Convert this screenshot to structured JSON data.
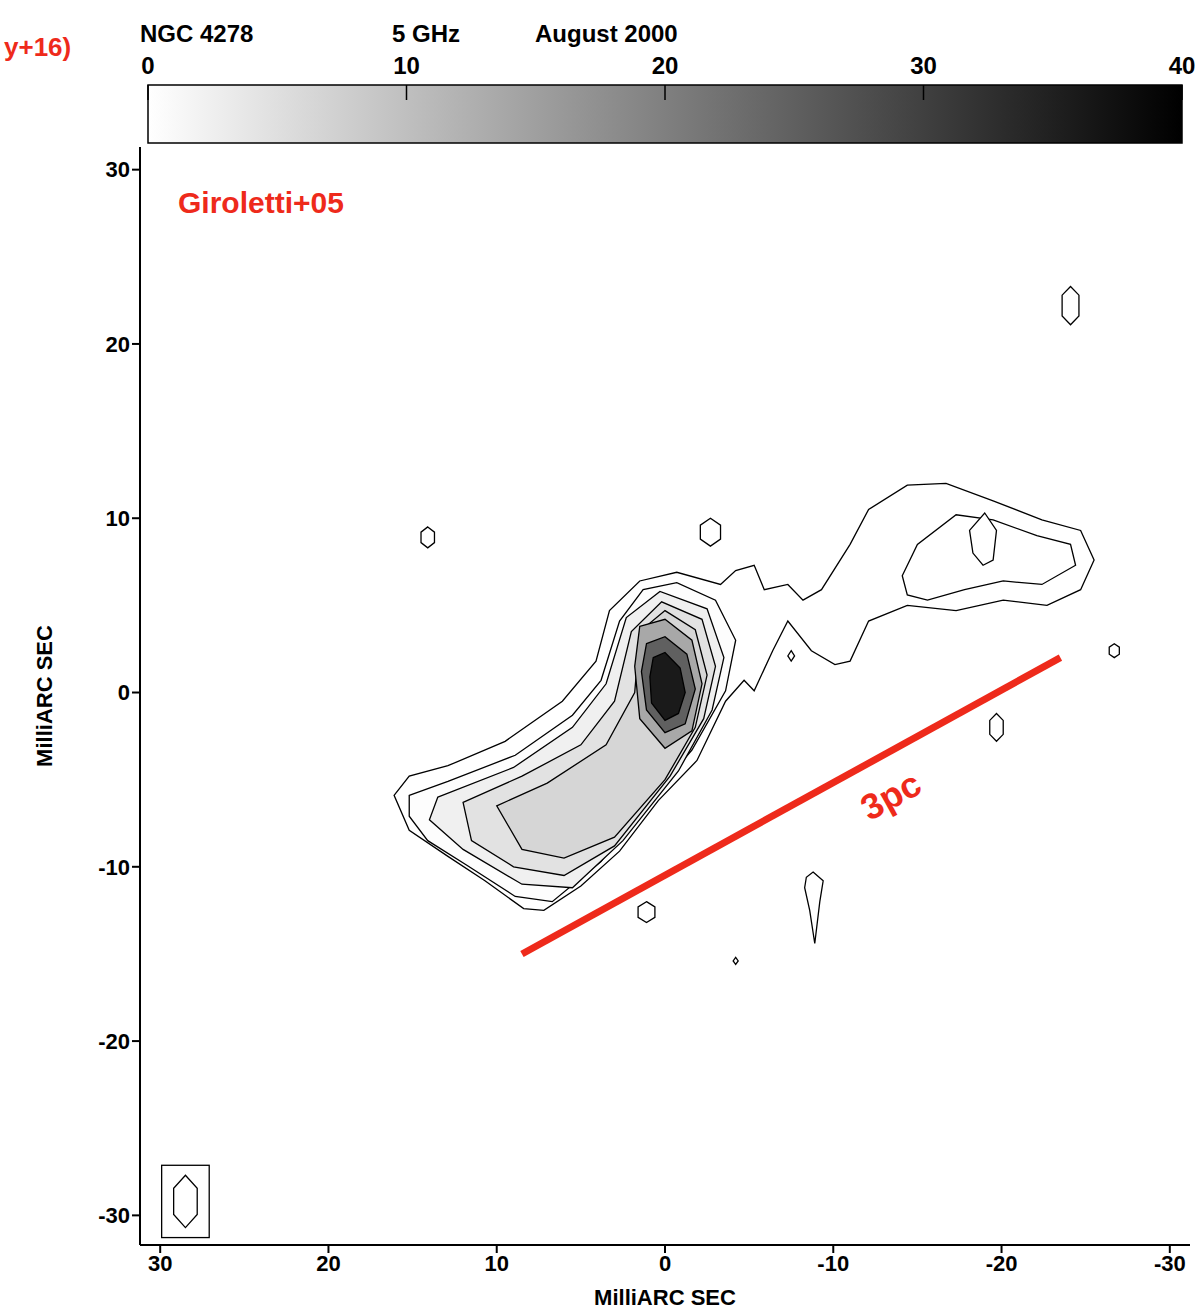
{
  "chart_data": {
    "type": "contour",
    "title": "NGC 4278",
    "subtitle": "5 GHz",
    "annotations": [
      "August 2000",
      "Giroletti+05",
      "y+16)"
    ],
    "x_label": "MilliARC SEC",
    "y_label": "MilliARC SEC",
    "xlim": [
      31.2,
      -31.2
    ],
    "xticks": [
      30,
      20,
      10,
      0,
      -10,
      -20,
      -30
    ],
    "ylim": [
      -31.7,
      31.3
    ],
    "yticks": [
      -30,
      -20,
      -10,
      0,
      10,
      20,
      30
    ],
    "colorbar": {
      "range": [
        0,
        40
      ],
      "ticks": [
        0,
        10,
        20,
        30,
        40
      ]
    },
    "scale_bar": {
      "label": "3pc",
      "color": "#ee2a1b",
      "x": [
        8.5,
        -23.5
      ],
      "y": [
        -15.0,
        2.0
      ]
    },
    "beam": {
      "x": [
        28.5,
        27.8,
        27.8,
        28.5,
        29.2,
        29.2
      ],
      "y": [
        -27.7,
        -28.45,
        -29.95,
        -30.7,
        -29.95,
        -28.45
      ]
    },
    "contours": [
      {
        "color": "#ffffff",
        "x": [
          16.1,
          15.2,
          12.9,
          9.5,
          6.1,
          4.1,
          3.3,
          1.5,
          -0.7,
          -3.3,
          -4.2,
          -5.3,
          -5.9,
          -7.3,
          -8.2,
          -9.3,
          -11.0,
          -12.1,
          -14.4,
          -16.7,
          -19.5,
          -22.4,
          -24.7,
          -25.5,
          -24.7,
          -22.7,
          -20.1,
          -17.3,
          -14.4,
          -12.1,
          -11.0,
          -10.1,
          -8.7,
          -7.3,
          -6.4,
          -5.3,
          -4.7,
          -3.6,
          -1.9,
          0.4,
          2.7,
          5.0,
          7.2,
          8.4,
          10.7,
          12.9,
          15.2
        ],
        "y": [
          -5.9,
          -4.8,
          -4.2,
          -2.8,
          -0.5,
          1.8,
          4.7,
          6.4,
          6.9,
          6.2,
          7.0,
          7.3,
          5.9,
          6.2,
          5.3,
          5.9,
          8.5,
          10.5,
          11.9,
          12.0,
          11.0,
          9.9,
          9.3,
          7.6,
          5.9,
          5.0,
          5.3,
          4.7,
          5.0,
          4.1,
          1.8,
          1.6,
          2.4,
          4.1,
          2.4,
          0.1,
          0.7,
          -0.5,
          -3.9,
          -6.2,
          -9.1,
          -11.1,
          -12.5,
          -12.4,
          -10.8,
          -9.4,
          -7.9
        ]
      },
      {
        "color": "#fdfdfd",
        "x": [
          15.2,
          12.9,
          8.9,
          5.5,
          3.8,
          2.7,
          1.3,
          -0.7,
          -3.0,
          -4.2,
          -3.6,
          -1.6,
          1.0,
          3.8,
          6.7,
          8.9,
          11.8,
          14.1,
          15.2
        ],
        "y": [
          -5.9,
          -5.1,
          -3.6,
          -1.3,
          0.7,
          4.1,
          5.9,
          6.3,
          5.3,
          3.0,
          0.1,
          -3.3,
          -6.2,
          -9.7,
          -12.0,
          -11.7,
          -9.9,
          -8.5,
          -7.1
        ]
      },
      {
        "color": "#f0f0f0",
        "x": [
          13.5,
          9.0,
          5.5,
          3.5,
          2.3,
          0.3,
          -2.5,
          -3.5,
          -2.8,
          -0.8,
          2.5,
          5.5,
          8.5,
          12.0,
          14.0
        ],
        "y": [
          -6.0,
          -4.3,
          -2.0,
          0.5,
          4.3,
          5.8,
          4.8,
          2.0,
          -1.0,
          -4.5,
          -8.5,
          -11.2,
          -11.0,
          -9.0,
          -7.3
        ]
      },
      {
        "color": "#e2e2e2",
        "x": [
          12.0,
          8.5,
          5.0,
          3.0,
          2.0,
          0.2,
          -2.2,
          -3.0,
          -2.3,
          -0.3,
          3.0,
          6.0,
          9.0,
          11.5
        ],
        "y": [
          -6.3,
          -4.8,
          -3.0,
          -0.5,
          3.5,
          5.2,
          4.2,
          1.5,
          -1.5,
          -4.8,
          -8.8,
          -10.5,
          -10.0,
          -8.5
        ]
      },
      {
        "color": "#d6d6d6",
        "x": [
          10.0,
          7.0,
          3.5,
          1.8,
          1.5,
          0.0,
          -1.8,
          -2.5,
          -1.8,
          0.0,
          3.0,
          6.0,
          8.5
        ],
        "y": [
          -6.5,
          -5.2,
          -3.0,
          0.0,
          3.5,
          4.7,
          3.6,
          1.0,
          -2.0,
          -5.0,
          -8.3,
          -9.5,
          -9.0
        ]
      },
      {
        "color": "#a8a8a8",
        "x": [
          1.5,
          0.0,
          -1.6,
          -2.2,
          -1.6,
          0.0,
          1.5,
          1.8
        ],
        "y": [
          3.8,
          4.2,
          3.0,
          0.5,
          -2.2,
          -3.2,
          -1.5,
          1.5
        ]
      },
      {
        "color": "#606060",
        "x": [
          1.1,
          0.0,
          -1.3,
          -1.8,
          -1.2,
          0.0,
          1.1,
          1.4
        ],
        "y": [
          2.8,
          3.2,
          2.2,
          0.2,
          -1.8,
          -2.3,
          -1.0,
          1.2
        ]
      },
      {
        "color": "#1a1a1a",
        "x": [
          0.7,
          0.0,
          -0.9,
          -1.2,
          -0.8,
          0.0,
          0.8,
          0.9
        ],
        "y": [
          2.0,
          2.3,
          1.4,
          0.0,
          -1.2,
          -1.6,
          -0.6,
          0.9
        ]
      },
      {
        "color": "#ffffff",
        "x": [
          -14.1,
          -15.0,
          -17.3,
          -19.5,
          -22.1,
          -24.1,
          -24.4,
          -22.4,
          -20.1,
          -17.8,
          -15.6,
          -14.4
        ],
        "y": [
          6.7,
          8.5,
          10.2,
          9.9,
          9.0,
          8.5,
          7.3,
          6.2,
          6.4,
          5.9,
          5.3,
          5.6
        ]
      },
      {
        "color": "#ffffff",
        "x": [
          -18.1,
          -19.0,
          -19.7,
          -19.5,
          -18.9,
          -18.3
        ],
        "y": [
          9.3,
          10.3,
          9.3,
          7.6,
          7.3,
          8.0
        ]
      },
      {
        "color": "#ffffff",
        "x": [
          14.1,
          13.7,
          13.7,
          14.1,
          14.5,
          14.5
        ],
        "y": [
          9.5,
          9.2,
          8.6,
          8.3,
          8.6,
          9.2
        ]
      },
      {
        "color": "#ffffff",
        "x": [
          -2.7,
          -3.3,
          -3.3,
          -2.7,
          -2.1,
          -2.1
        ],
        "y": [
          10.0,
          9.6,
          8.8,
          8.4,
          8.8,
          9.6
        ]
      },
      {
        "color": "#ffffff",
        "x": [
          -24.1,
          -24.6,
          -24.6,
          -24.1,
          -23.6,
          -23.6
        ],
        "y": [
          23.3,
          22.8,
          21.6,
          21.1,
          21.6,
          22.8
        ]
      },
      {
        "color": "#ffffff",
        "x": [
          -26.7,
          -27.0,
          -27.0,
          -26.7,
          -26.4,
          -26.4
        ],
        "y": [
          2.8,
          2.6,
          2.2,
          2.0,
          2.2,
          2.6
        ]
      },
      {
        "color": "#ffffff",
        "x": [
          -19.7,
          -20.1,
          -20.1,
          -19.7,
          -19.3,
          -19.3
        ],
        "y": [
          -1.2,
          -1.6,
          -2.4,
          -2.8,
          -2.4,
          -1.6
        ]
      },
      {
        "color": "#ffffff",
        "x": [
          1.1,
          0.6,
          0.6,
          1.1,
          1.6,
          1.6
        ],
        "y": [
          -12.0,
          -12.3,
          -12.9,
          -13.2,
          -12.9,
          -12.3
        ]
      },
      {
        "color": "#ffffff",
        "x": [
          -8.8,
          -9.4,
          -9.2,
          -8.9,
          -8.6,
          -8.3,
          -8.4
        ],
        "y": [
          -10.3,
          -10.8,
          -12.0,
          -14.4,
          -12.5,
          -11.2,
          -10.6
        ]
      },
      {
        "color": "#ffffff",
        "x": [
          -4.2,
          -4.35,
          -4.2,
          -4.05
        ],
        "y": [
          -15.2,
          -15.4,
          -15.6,
          -15.4
        ]
      },
      {
        "color": "#ffffff",
        "x": [
          -7.5,
          -7.7,
          -7.5,
          -7.3
        ],
        "y": [
          2.4,
          2.1,
          1.8,
          2.1
        ]
      }
    ]
  }
}
